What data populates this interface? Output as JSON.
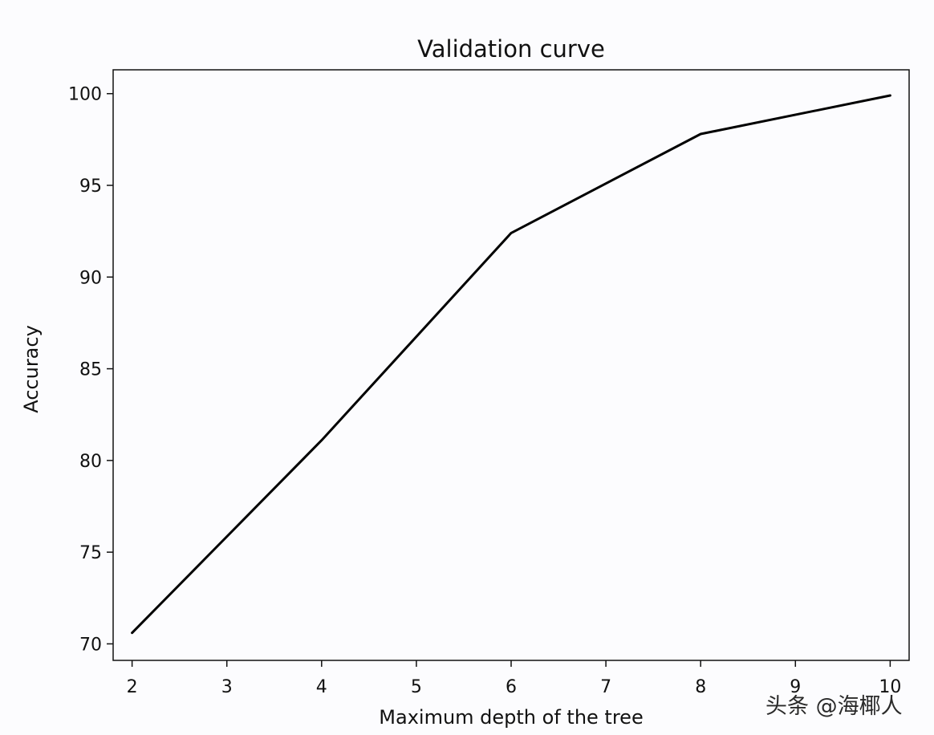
{
  "chart_data": {
    "type": "line",
    "title": "Validation curve",
    "xlabel": "Maximum depth of the tree",
    "ylabel": "Accuracy",
    "x": [
      2,
      4,
      6,
      8,
      10
    ],
    "series": [
      {
        "name": "accuracy",
        "values": [
          70.6,
          81.1,
          92.4,
          97.8,
          99.9
        ]
      }
    ],
    "xlim": [
      1.8,
      10.2
    ],
    "ylim": [
      69.1,
      101.3
    ],
    "xticks": [
      2,
      3,
      4,
      5,
      6,
      7,
      8,
      9,
      10
    ],
    "yticks": [
      70,
      75,
      80,
      85,
      90,
      95,
      100
    ],
    "grid": false,
    "line_color": "#000000"
  },
  "watermark": "头条 @海椰人"
}
